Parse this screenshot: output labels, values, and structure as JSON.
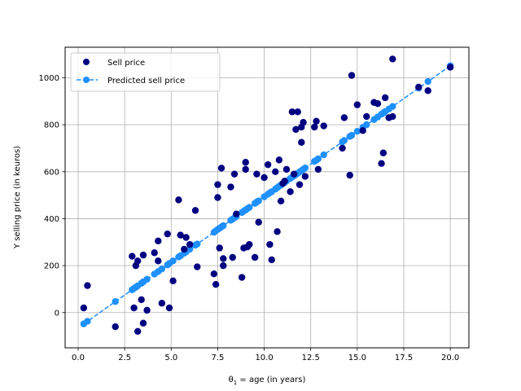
{
  "chart_data": {
    "type": "scatter",
    "xlabel_prefix": "θ",
    "xlabel_sub": "1",
    "xlabel_suffix": " = age (in years)",
    "ylabel": "Y selling price (in keuros)",
    "xlim": [
      -0.7,
      21.0
    ],
    "ylim": [
      -150,
      1130
    ],
    "xticks": [
      0.0,
      2.5,
      5.0,
      7.5,
      10.0,
      12.5,
      15.0,
      17.5,
      20.0
    ],
    "xtick_labels": [
      "0.0",
      "2.5",
      "5.0",
      "7.5",
      "10.0",
      "12.5",
      "15.0",
      "17.5",
      "20.0"
    ],
    "yticks": [
      0,
      200,
      400,
      600,
      800,
      1000
    ],
    "ytick_labels": [
      "0",
      "200",
      "400",
      "600",
      "800",
      "1000"
    ],
    "grid": true,
    "legend_position": "top-left",
    "series": [
      {
        "name": "Sell price",
        "style": "markers",
        "color": "#000080",
        "points": [
          [
            0.3,
            20
          ],
          [
            0.5,
            115
          ],
          [
            2.0,
            -60
          ],
          [
            2.9,
            240
          ],
          [
            3.0,
            20
          ],
          [
            3.1,
            200
          ],
          [
            3.2,
            220
          ],
          [
            3.2,
            -80
          ],
          [
            3.4,
            55
          ],
          [
            3.5,
            245
          ],
          [
            3.5,
            -45
          ],
          [
            3.7,
            10
          ],
          [
            4.1,
            255
          ],
          [
            4.3,
            220
          ],
          [
            4.3,
            305
          ],
          [
            4.5,
            40
          ],
          [
            4.8,
            335
          ],
          [
            4.9,
            20
          ],
          [
            5.1,
            135
          ],
          [
            5.4,
            480
          ],
          [
            5.5,
            330
          ],
          [
            5.7,
            270
          ],
          [
            5.8,
            320
          ],
          [
            6.0,
            290
          ],
          [
            6.3,
            435
          ],
          [
            6.4,
            195
          ],
          [
            7.3,
            165
          ],
          [
            7.4,
            120
          ],
          [
            7.5,
            545
          ],
          [
            7.5,
            490
          ],
          [
            7.6,
            275
          ],
          [
            7.7,
            615
          ],
          [
            7.8,
            200
          ],
          [
            7.8,
            230
          ],
          [
            8.2,
            535
          ],
          [
            8.3,
            235
          ],
          [
            8.4,
            590
          ],
          [
            8.5,
            420
          ],
          [
            8.8,
            150
          ],
          [
            8.9,
            275
          ],
          [
            9.0,
            640
          ],
          [
            9.0,
            610
          ],
          [
            9.1,
            280
          ],
          [
            9.2,
            290
          ],
          [
            9.5,
            235
          ],
          [
            9.6,
            590
          ],
          [
            9.7,
            385
          ],
          [
            10.0,
            575
          ],
          [
            10.2,
            630
          ],
          [
            10.3,
            290
          ],
          [
            10.4,
            225
          ],
          [
            10.6,
            600
          ],
          [
            10.7,
            345
          ],
          [
            10.8,
            650
          ],
          [
            10.9,
            475
          ],
          [
            11.0,
            550
          ],
          [
            11.1,
            560
          ],
          [
            11.2,
            610
          ],
          [
            11.4,
            515
          ],
          [
            11.5,
            855
          ],
          [
            11.6,
            590
          ],
          [
            11.7,
            780
          ],
          [
            11.8,
            855
          ],
          [
            11.9,
            545
          ],
          [
            12.0,
            790
          ],
          [
            12.0,
            725
          ],
          [
            12.1,
            810
          ],
          [
            12.2,
            580
          ],
          [
            12.7,
            790
          ],
          [
            12.8,
            815
          ],
          [
            12.9,
            610
          ],
          [
            13.2,
            795
          ],
          [
            14.2,
            700
          ],
          [
            14.3,
            830
          ],
          [
            14.6,
            585
          ],
          [
            14.7,
            1010
          ],
          [
            15.0,
            885
          ],
          [
            15.3,
            775
          ],
          [
            15.5,
            835
          ],
          [
            15.9,
            895
          ],
          [
            16.1,
            890
          ],
          [
            16.3,
            635
          ],
          [
            16.4,
            680
          ],
          [
            16.5,
            915
          ],
          [
            16.7,
            830
          ],
          [
            16.9,
            1080
          ],
          [
            16.9,
            835
          ],
          [
            18.3,
            960
          ],
          [
            18.8,
            945
          ],
          [
            20.0,
            1045
          ]
        ]
      },
      {
        "name": "Predicted sell price",
        "style": "dashed-line-markers",
        "color": "#1e90ff",
        "points": [
          [
            0.3,
            -48
          ],
          [
            0.5,
            -37
          ],
          [
            2.0,
            47
          ],
          [
            2.9,
            97
          ],
          [
            3.0,
            103
          ],
          [
            3.1,
            108
          ],
          [
            3.2,
            114
          ],
          [
            3.4,
            125
          ],
          [
            3.5,
            131
          ],
          [
            3.7,
            142
          ],
          [
            4.1,
            164
          ],
          [
            4.3,
            175
          ],
          [
            4.5,
            186
          ],
          [
            4.8,
            203
          ],
          [
            4.9,
            209
          ],
          [
            5.1,
            220
          ],
          [
            5.4,
            237
          ],
          [
            5.5,
            242
          ],
          [
            5.7,
            253
          ],
          [
            5.8,
            259
          ],
          [
            6.0,
            270
          ],
          [
            6.3,
            287
          ],
          [
            6.4,
            292
          ],
          [
            7.3,
            342
          ],
          [
            7.4,
            348
          ],
          [
            7.5,
            354
          ],
          [
            7.6,
            359
          ],
          [
            7.7,
            365
          ],
          [
            7.8,
            370
          ],
          [
            8.2,
            393
          ],
          [
            8.3,
            398
          ],
          [
            8.4,
            404
          ],
          [
            8.5,
            409
          ],
          [
            8.8,
            426
          ],
          [
            8.9,
            432
          ],
          [
            9.0,
            437
          ],
          [
            9.1,
            443
          ],
          [
            9.2,
            448
          ],
          [
            9.5,
            465
          ],
          [
            9.6,
            471
          ],
          [
            9.7,
            476
          ],
          [
            10.0,
            493
          ],
          [
            10.2,
            504
          ],
          [
            10.3,
            510
          ],
          [
            10.4,
            515
          ],
          [
            10.6,
            526
          ],
          [
            10.7,
            532
          ],
          [
            10.8,
            538
          ],
          [
            10.9,
            543
          ],
          [
            11.0,
            549
          ],
          [
            11.1,
            554
          ],
          [
            11.2,
            560
          ],
          [
            11.4,
            571
          ],
          [
            11.5,
            577
          ],
          [
            11.6,
            582
          ],
          [
            11.7,
            588
          ],
          [
            11.8,
            593
          ],
          [
            11.9,
            599
          ],
          [
            12.0,
            604
          ],
          [
            12.1,
            610
          ],
          [
            12.2,
            616
          ],
          [
            12.7,
            644
          ],
          [
            12.8,
            649
          ],
          [
            12.9,
            655
          ],
          [
            13.2,
            672
          ],
          [
            14.2,
            727
          ],
          [
            14.3,
            733
          ],
          [
            14.6,
            750
          ],
          [
            14.7,
            755
          ],
          [
            15.0,
            772
          ],
          [
            15.3,
            789
          ],
          [
            15.5,
            800
          ],
          [
            15.9,
            822
          ],
          [
            16.1,
            833
          ],
          [
            16.3,
            845
          ],
          [
            16.4,
            850
          ],
          [
            16.5,
            856
          ],
          [
            16.7,
            867
          ],
          [
            16.9,
            878
          ],
          [
            18.3,
            956
          ],
          [
            18.8,
            984
          ],
          [
            20.0,
            1051
          ]
        ]
      }
    ]
  }
}
